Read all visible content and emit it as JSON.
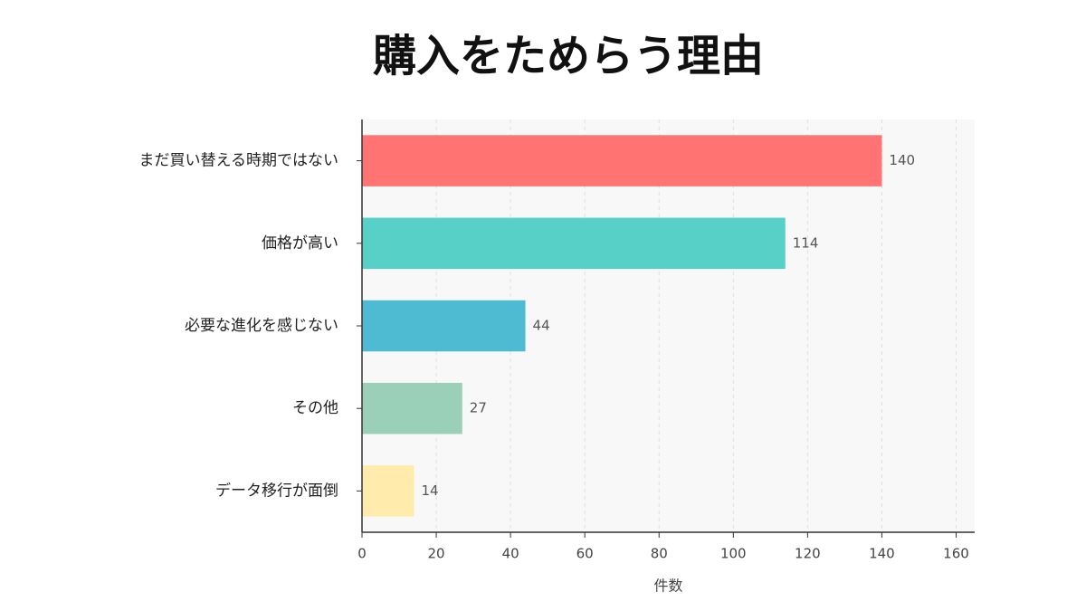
{
  "chart_data": {
    "type": "bar",
    "orientation": "horizontal",
    "title": "購入をためらう理由",
    "categories": [
      "まだ買い替える時期ではない",
      "価格が高い",
      "必要な進化を感じない",
      "その他",
      "データ移行が面倒"
    ],
    "values": [
      140,
      114,
      44,
      27,
      14
    ],
    "colors": [
      "#ff6b6b",
      "#4ecdc4",
      "#45b7d1",
      "#96ceb4",
      "#ffeaa7"
    ],
    "xlabel": "件数",
    "xlim": [
      0,
      165
    ],
    "xticks": [
      0,
      20,
      40,
      60,
      80,
      100,
      120,
      140,
      160
    ],
    "grid": true
  }
}
